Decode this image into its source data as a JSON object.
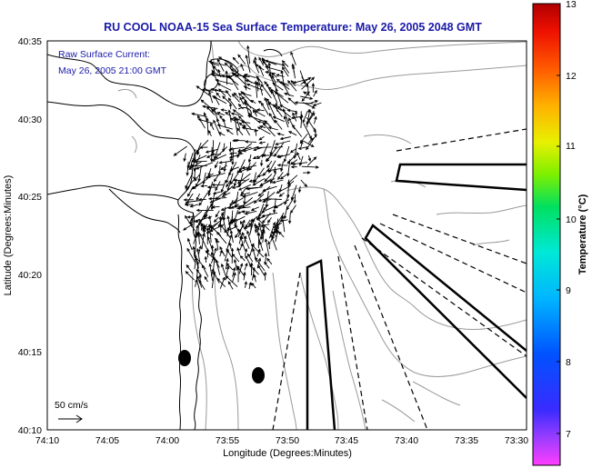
{
  "title": "RU COOL  NOAA-15  Sea Surface Temperature:  May 26, 2005 2048 GMT",
  "current_note": {
    "line1": "Raw Surface Current:",
    "line2": "May 26, 2005 21:00 GMT"
  },
  "scale_label": "50 cm/s",
  "x_axis": {
    "label": "Longitude (Degrees:Minutes)",
    "ticks": [
      "74:10",
      "74:05",
      "74:00",
      "73:55",
      "73:50",
      "73:45",
      "73:40",
      "73:35",
      "73:30"
    ]
  },
  "y_axis": {
    "label": "Latitude (Degrees:Minutes)",
    "ticks": [
      "40:35",
      "40:30",
      "40:25",
      "40:20",
      "40:15",
      "40:10"
    ]
  },
  "colorbar": {
    "label": "Temperature (°C)",
    "ticks": [
      "13",
      "12",
      "11",
      "10",
      "9",
      "8",
      "7"
    ]
  },
  "colors": {
    "title": "#1a1aa8",
    "coast": "#000000",
    "contour": "#9a9a9a"
  }
}
